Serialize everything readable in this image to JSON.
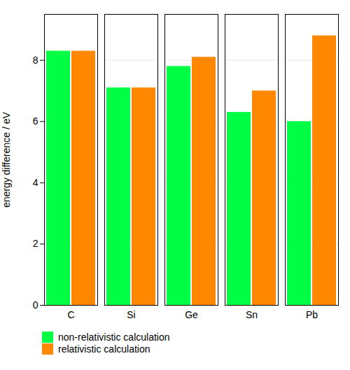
{
  "chart_data": {
    "type": "bar",
    "categories": [
      "C",
      "Si",
      "Ge",
      "Sn",
      "Pb"
    ],
    "series": [
      {
        "name": "non-relativistic calculation",
        "color": "#00ff44",
        "values": [
          8.3,
          7.1,
          7.8,
          6.3,
          6.0
        ]
      },
      {
        "name": "relativistic calculation",
        "color": "#ff8800",
        "values": [
          8.3,
          7.1,
          8.1,
          7.0,
          8.8
        ]
      }
    ],
    "ylabel": "energy difference / eV",
    "ylim": [
      0,
      9.5
    ],
    "yticks": [
      0,
      2,
      4,
      6,
      8
    ],
    "grid": true,
    "legend": "bottom"
  }
}
